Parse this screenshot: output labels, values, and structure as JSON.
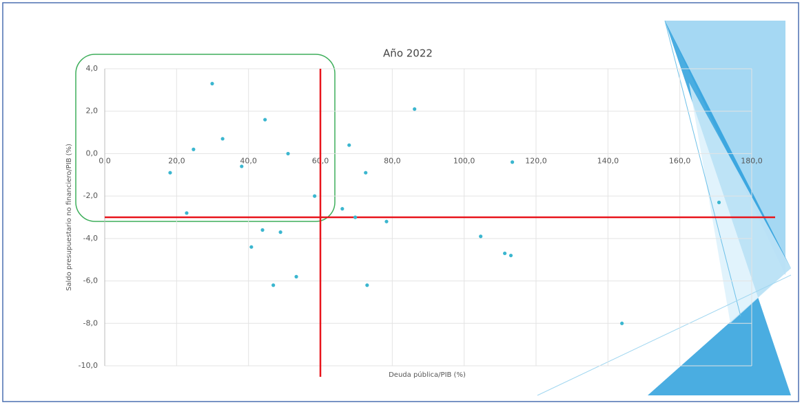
{
  "chart_data": {
    "type": "scatter",
    "title": "Año 2022",
    "x_label": "Deuda pública/PIB (%)",
    "y_label": "Saldo presupuestario no financiero/PIB (%)",
    "xlim": [
      0,
      180
    ],
    "ylim": [
      -10,
      4
    ],
    "xticks": [
      {
        "value": 0,
        "label": "0,0"
      },
      {
        "value": 20,
        "label": "20,0"
      },
      {
        "value": 40,
        "label": "40,0"
      },
      {
        "value": 60,
        "label": "60,0"
      },
      {
        "value": 80,
        "label": "80,0"
      },
      {
        "value": 100,
        "label": "100,0"
      },
      {
        "value": 120,
        "label": "120,0"
      },
      {
        "value": 140,
        "label": "140,0"
      },
      {
        "value": 160,
        "label": "160,0"
      },
      {
        "value": 180,
        "label": "180,0"
      }
    ],
    "yticks": [
      {
        "value": 4,
        "label": "4,0"
      },
      {
        "value": 2,
        "label": "2,0"
      },
      {
        "value": 0,
        "label": "0,0"
      },
      {
        "value": -2,
        "label": "-2,0"
      },
      {
        "value": -4,
        "label": "-4,0"
      },
      {
        "value": -6,
        "label": "-6,0"
      },
      {
        "value": -8,
        "label": "-8,0"
      },
      {
        "value": -10,
        "label": "-10,0"
      }
    ],
    "grid": true,
    "color": "#3bb6cf",
    "x": [
      29.9,
      44.6,
      86.2,
      32.8,
      24.7,
      51.0,
      68.0,
      38.1,
      18.2,
      72.6,
      113.4,
      58.4,
      22.8,
      66.1,
      69.7,
      78.4,
      170.9,
      43.9,
      48.9,
      40.8,
      104.6,
      111.3,
      113.0,
      53.3,
      46.9,
      73.0,
      143.9
    ],
    "values": [
      3.3,
      1.6,
      2.1,
      0.7,
      0.2,
      0.0,
      0.4,
      -0.6,
      -0.9,
      -0.9,
      -0.4,
      -2.0,
      -2.8,
      -2.6,
      -3.0,
      -3.2,
      -2.3,
      -3.6,
      -3.7,
      -4.4,
      -3.9,
      -4.7,
      -4.8,
      -5.8,
      -6.2,
      -6.2,
      -8.0
    ],
    "reference_x": 60,
    "reference_y": -3,
    "reference_color": "#e8141b"
  }
}
